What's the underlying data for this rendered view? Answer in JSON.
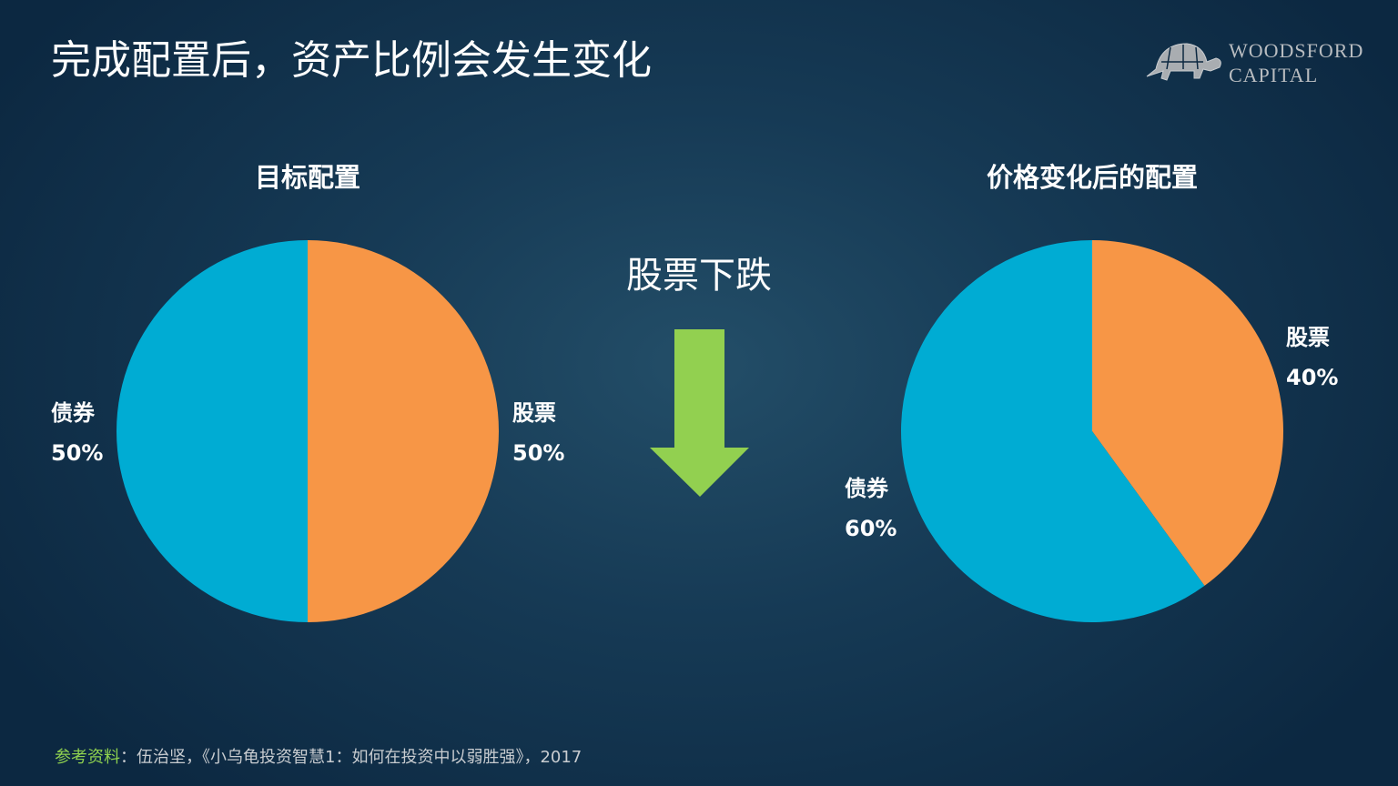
{
  "title": "完成配置后，资产比例会发生变化",
  "logo": {
    "line1": "WOODSFORD",
    "line2": "CAPITAL",
    "icon": "turtle-icon"
  },
  "middle": {
    "text": "股票下跌",
    "icon": "arrow-down-icon",
    "arrow_color": "#92d050"
  },
  "colors": {
    "stocks": "#f79646",
    "bonds": "#00acd3"
  },
  "chart_data": [
    {
      "type": "pie",
      "title": "目标配置",
      "slices": [
        {
          "label": "股票",
          "value": 50,
          "value_label": "50%",
          "color": "#f79646"
        },
        {
          "label": "债券",
          "value": 50,
          "value_label": "50%",
          "color": "#00acd3"
        }
      ]
    },
    {
      "type": "pie",
      "title": "价格变化后的配置",
      "slices": [
        {
          "label": "股票",
          "value": 40,
          "value_label": "40%",
          "color": "#f79646"
        },
        {
          "label": "债券",
          "value": 60,
          "value_label": "60%",
          "color": "#00acd3"
        }
      ]
    }
  ],
  "footer": {
    "source_label": "参考资料",
    "text": "：伍治坚，《小乌龟投资智慧1：如何在投资中以弱胜强》，2017"
  }
}
